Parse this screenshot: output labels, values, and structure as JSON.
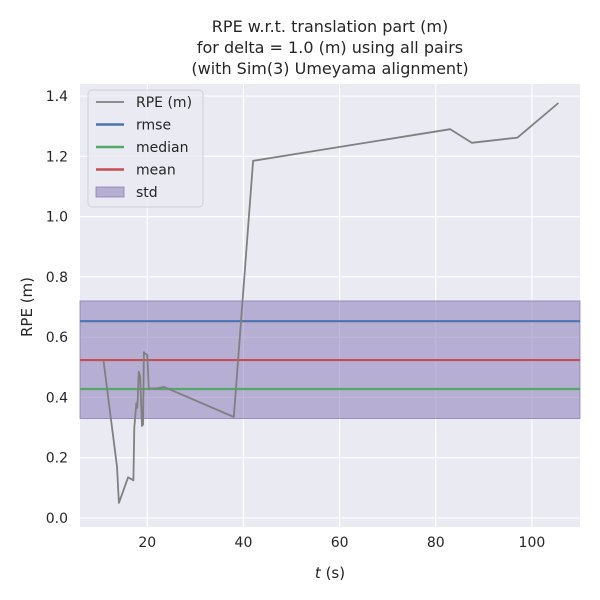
{
  "chart_data": {
    "type": "line",
    "title_lines": [
      "RPE w.r.t. translation part (m)",
      "for delta = 1.0 (m) using all pairs",
      "(with Sim(3) Umeyama alignment)"
    ],
    "xlabel_italic": "t",
    "xlabel_rest": " (s)",
    "ylabel": "RPE (m)",
    "xlim": [
      6,
      110
    ],
    "ylim": [
      -0.03,
      1.44
    ],
    "xticks": [
      20,
      40,
      60,
      80,
      100
    ],
    "xtick_labels": [
      "20",
      "40",
      "60",
      "80",
      "100"
    ],
    "yticks": [
      0.0,
      0.2,
      0.4,
      0.6,
      0.8,
      1.0,
      1.2,
      1.4
    ],
    "ytick_labels": [
      "0.0",
      "0.2",
      "0.4",
      "0.6",
      "0.8",
      "1.0",
      "1.2",
      "1.4"
    ],
    "grid": true,
    "legend_position": "top-left",
    "series": [
      {
        "name": "RPE (m)",
        "color": "#808080",
        "x": [
          10.9,
          13.7,
          14.1,
          16.0,
          17.1,
          17.3,
          17.7,
          17.9,
          18.0,
          18.2,
          18.5,
          18.9,
          19.1,
          19.3,
          19.6,
          20.0,
          20.3,
          22.0,
          23.5,
          38.0,
          42.0,
          83.0,
          87.5,
          97.0,
          105.5
        ],
        "y": [
          0.52,
          0.17,
          0.05,
          0.135,
          0.125,
          0.3,
          0.38,
          0.365,
          0.39,
          0.485,
          0.47,
          0.305,
          0.31,
          0.55,
          0.545,
          0.54,
          0.43,
          0.43,
          0.435,
          0.335,
          1.185,
          1.29,
          1.245,
          1.262,
          1.377
        ]
      }
    ],
    "hlines": [
      {
        "name": "rmse",
        "value": 0.653,
        "color": "#4c72b0"
      },
      {
        "name": "median",
        "value": 0.428,
        "color": "#55a868"
      },
      {
        "name": "mean",
        "value": 0.524,
        "color": "#c44e52"
      }
    ],
    "band": {
      "name": "std",
      "low": 0.33,
      "high": 0.72,
      "color": "#8172b3"
    }
  }
}
